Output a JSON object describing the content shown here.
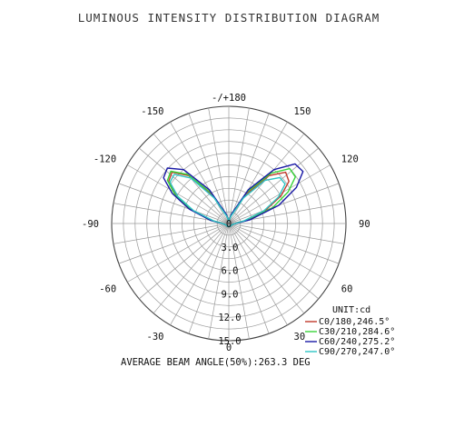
{
  "chart_data": {
    "type": "polar-line",
    "title": "LUMINOUS INTENSITY DISTRIBUTION DIAGRAM",
    "angle_labels": [
      {
        "deg": 180,
        "text": "-/+180"
      },
      {
        "deg": 150,
        "text": "150"
      },
      {
        "deg": 120,
        "text": "120"
      },
      {
        "deg": 90,
        "text": "90"
      },
      {
        "deg": 60,
        "text": "60"
      },
      {
        "deg": 30,
        "text": "30"
      },
      {
        "deg": 0,
        "text": "0"
      },
      {
        "deg": -30,
        "text": "-30"
      },
      {
        "deg": -60,
        "text": "-60"
      },
      {
        "deg": -90,
        "text": "-90"
      },
      {
        "deg": -120,
        "text": "-120"
      },
      {
        "deg": -150,
        "text": "-150"
      }
    ],
    "radial_labels": [
      "3.0",
      "6.0",
      "9.0",
      "12.0",
      "15.0"
    ],
    "r_max": 15,
    "r_ticks": [
      0,
      3,
      6,
      9,
      12,
      15
    ],
    "unit_label": "UNIT:cd",
    "series": [
      {
        "name": "C0/180,246.5°",
        "color": "#c0392b",
        "angles": [
          -180,
          -165,
          -150,
          -140,
          -132,
          -125,
          -118,
          -110,
          -100,
          -90,
          -75,
          -60,
          -40,
          -20,
          0,
          20,
          40,
          60,
          75,
          90,
          100,
          110,
          118,
          125,
          132,
          140,
          150,
          165,
          180
        ],
        "values": [
          0.3,
          1.0,
          4.2,
          8.0,
          9.8,
          9.4,
          7.6,
          5.0,
          2.2,
          0.8,
          0.5,
          0.4,
          0.4,
          0.4,
          0.4,
          0.4,
          0.4,
          0.4,
          0.5,
          0.8,
          2.2,
          5.0,
          7.6,
          9.4,
          9.8,
          8.0,
          4.2,
          1.0,
          0.3
        ]
      },
      {
        "name": "C30/210,284.6°",
        "color": "#3ad43a",
        "angles": [
          -180,
          -165,
          -150,
          -140,
          -132,
          -125,
          -118,
          -110,
          -100,
          -90,
          -75,
          -60,
          -40,
          -20,
          0,
          20,
          40,
          60,
          75,
          90,
          100,
          110,
          118,
          125,
          132,
          140,
          150,
          165,
          180
        ],
        "values": [
          0.3,
          1.1,
          4.5,
          8.2,
          10.0,
          9.6,
          7.8,
          5.2,
          2.4,
          0.9,
          0.5,
          0.4,
          0.4,
          0.4,
          0.4,
          0.4,
          0.4,
          0.4,
          0.5,
          0.9,
          2.6,
          6.0,
          8.6,
          10.4,
          10.5,
          8.4,
          4.6,
          1.2,
          0.3
        ]
      },
      {
        "name": "C60/240,275.2°",
        "color": "#1a1aa6",
        "angles": [
          -180,
          -165,
          -150,
          -140,
          -132,
          -125,
          -118,
          -110,
          -100,
          -90,
          -75,
          -60,
          -40,
          -20,
          0,
          20,
          40,
          60,
          75,
          90,
          100,
          110,
          118,
          125,
          132,
          140,
          150,
          165,
          180
        ],
        "values": [
          0.3,
          1.2,
          5.0,
          9.0,
          10.6,
          10.2,
          8.2,
          5.4,
          2.4,
          0.9,
          0.5,
          0.4,
          0.4,
          0.4,
          0.4,
          0.4,
          0.4,
          0.4,
          0.5,
          0.9,
          2.8,
          6.8,
          9.8,
          11.6,
          11.4,
          9.0,
          5.0,
          1.2,
          0.3
        ]
      },
      {
        "name": "C90/270,247.0°",
        "color": "#2ec4c4",
        "angles": [
          -180,
          -165,
          -150,
          -140,
          -132,
          -125,
          -118,
          -110,
          -100,
          -90,
          -75,
          -60,
          -40,
          -20,
          0,
          20,
          40,
          60,
          75,
          90,
          100,
          110,
          118,
          125,
          132,
          140,
          150,
          165,
          180
        ],
        "values": [
          0.3,
          0.9,
          3.8,
          7.6,
          9.4,
          9.2,
          7.4,
          4.8,
          2.0,
          0.8,
          0.5,
          0.4,
          0.4,
          0.4,
          0.4,
          0.4,
          0.4,
          0.4,
          0.5,
          0.8,
          2.0,
          4.8,
          7.2,
          8.8,
          8.8,
          7.2,
          3.8,
          0.9,
          0.3
        ]
      }
    ],
    "footer": "AVERAGE BEAM ANGLE(50%):263.3 DEG"
  }
}
